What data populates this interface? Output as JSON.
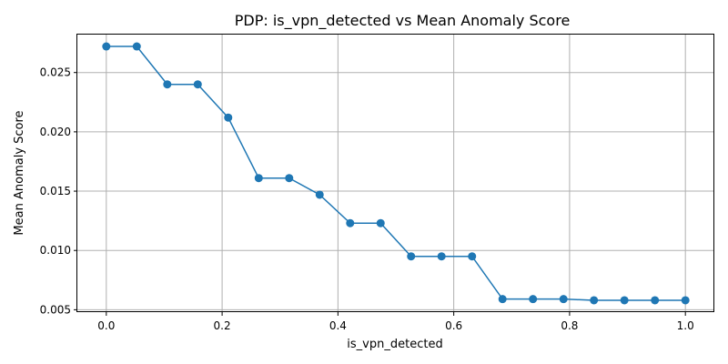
{
  "chart_data": {
    "type": "line",
    "title": "PDP: is_vpn_detected vs Mean Anomaly Score",
    "xlabel": "is_vpn_detected",
    "ylabel": "Mean Anomaly Score",
    "xlim": [
      -0.05,
      1.05
    ],
    "ylim": [
      0.0048,
      0.0282
    ],
    "xticks": [
      0.0,
      0.2,
      0.4,
      0.6,
      0.8,
      1.0
    ],
    "xtick_labels": [
      "0.0",
      "0.2",
      "0.4",
      "0.6",
      "0.8",
      "1.0"
    ],
    "yticks": [
      0.005,
      0.01,
      0.015,
      0.02,
      0.025
    ],
    "ytick_labels": [
      "0.005",
      "0.010",
      "0.015",
      "0.020",
      "0.025"
    ],
    "grid": true,
    "series": [
      {
        "color": "#1f77b4",
        "marker": "circle",
        "x": [
          0.0,
          0.0526,
          0.1053,
          0.1579,
          0.2105,
          0.2632,
          0.3158,
          0.3684,
          0.4211,
          0.4737,
          0.5263,
          0.5789,
          0.6316,
          0.6842,
          0.7368,
          0.7895,
          0.8421,
          0.8947,
          0.9474,
          1.0
        ],
        "y": [
          0.0272,
          0.0272,
          0.024,
          0.024,
          0.0212,
          0.0161,
          0.0161,
          0.0147,
          0.0123,
          0.0123,
          0.0095,
          0.0095,
          0.0095,
          0.0059,
          0.0059,
          0.0059,
          0.0058,
          0.0058,
          0.0058,
          0.0058
        ]
      }
    ]
  }
}
